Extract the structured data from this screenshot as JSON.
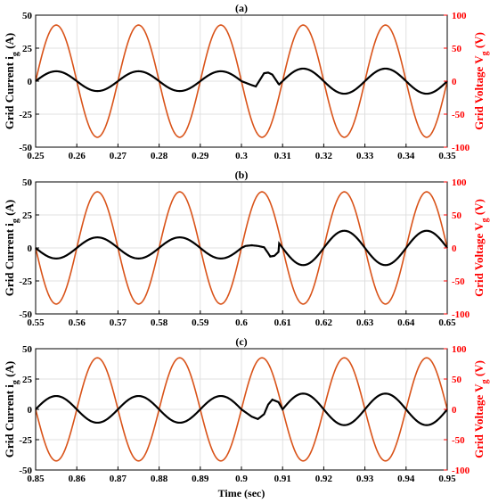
{
  "colors": {
    "current": "#000000",
    "voltage": "#d95319",
    "right_axis": "#ff0000",
    "grid": "#d9d9d9"
  },
  "chart_data": [
    {
      "type": "line",
      "title": "(a)",
      "xlabel": "",
      "xlim": [
        0.25,
        0.35
      ],
      "xticks": [
        "0.25",
        "0.26",
        "0.27",
        "0.28",
        "0.29",
        "0.3",
        "0.31",
        "0.32",
        "0.33",
        "0.34",
        "0.35"
      ],
      "ylabel_left": {
        "main": "Grid Current i",
        "sub": "g",
        "unit": "(A)"
      },
      "ylim_left": [
        -50,
        50
      ],
      "yticks_left": [
        "50",
        "25",
        "0",
        "-25",
        "-50"
      ],
      "ylabel_right": {
        "main": "Grid Voltage V",
        "sub": "g",
        "unit": "(V)"
      },
      "ylim_right": [
        -100,
        100
      ],
      "yticks_right": [
        "100",
        "50",
        "0",
        "-50",
        "-100"
      ],
      "grid": true,
      "series": [
        {
          "axis": "right",
          "color": "#d95319",
          "frequency_hz": 50,
          "amplitude": 85,
          "phase_origin": 0.25,
          "phase_deg": 0
        },
        {
          "axis": "left",
          "color": "#000000",
          "frequency_hz": 50,
          "phase_origin": 0.25,
          "phase_deg": 0,
          "amplitude_before": 7.5,
          "amplitude_after": 9.5,
          "event_time": 0.3,
          "transient": [
            [
              0.3,
              0
            ],
            [
              0.3025,
              -3
            ],
            [
              0.3035,
              -4
            ],
            [
              0.3045,
              1
            ],
            [
              0.3055,
              6
            ],
            [
              0.3065,
              6.5
            ],
            [
              0.3075,
              5
            ],
            [
              0.309,
              -2
            ]
          ]
        }
      ]
    },
    {
      "type": "line",
      "title": "(b)",
      "xlabel": "",
      "xlim": [
        0.55,
        0.65
      ],
      "xticks": [
        "0.55",
        "0.56",
        "0.57",
        "0.58",
        "0.59",
        "0.6",
        "0.61",
        "0.62",
        "0.63",
        "0.64",
        "0.65"
      ],
      "ylabel_left": {
        "main": "Grid Current i",
        "sub": "g",
        "unit": "(A)"
      },
      "ylim_left": [
        -50,
        50
      ],
      "yticks_left": [
        "50",
        "25",
        "0",
        "-25",
        "-50"
      ],
      "ylabel_right": {
        "main": "Grid Voltage V",
        "sub": "g",
        "unit": "(V)"
      },
      "ylim_right": [
        -100,
        100
      ],
      "yticks_right": [
        "100",
        "50",
        "0",
        "-50",
        "-100"
      ],
      "grid": true,
      "series": [
        {
          "axis": "right",
          "color": "#d95319",
          "frequency_hz": 50,
          "amplitude": 85,
          "phase_origin": 0.55,
          "phase_deg": 180
        },
        {
          "axis": "left",
          "color": "#000000",
          "frequency_hz": 50,
          "phase_origin": 0.55,
          "phase_deg": 180,
          "amplitude_before": 8,
          "amplitude_after": 13,
          "event_time": 0.6,
          "transient": [
            [
              0.6,
              0
            ],
            [
              0.601,
              1.5
            ],
            [
              0.6025,
              2
            ],
            [
              0.604,
              1.5
            ],
            [
              0.6055,
              0.5
            ],
            [
              0.6065,
              -4
            ],
            [
              0.607,
              -6.5
            ],
            [
              0.608,
              -6
            ],
            [
              0.609,
              -3
            ]
          ]
        }
      ]
    },
    {
      "type": "line",
      "title": "(c)",
      "xlabel": "Time (sec)",
      "xlim": [
        0.85,
        0.95
      ],
      "xticks": [
        "0.85",
        "0.86",
        "0.87",
        "0.88",
        "0.89",
        "0.9",
        "0.91",
        "0.92",
        "0.93",
        "0.94",
        "0.95"
      ],
      "ylabel_left": {
        "main": "Grid Current i",
        "sub": "g",
        "unit": "(A)"
      },
      "ylim_left": [
        -50,
        50
      ],
      "yticks_left": [
        "50",
        "25",
        "0",
        "-25",
        "-50"
      ],
      "ylabel_right": {
        "main": "Grid Voltage V",
        "sub": "g",
        "unit": "(V)"
      },
      "ylim_right": [
        -100,
        100
      ],
      "yticks_right": [
        "100",
        "50",
        "0",
        "-50",
        "-100"
      ],
      "grid": true,
      "series": [
        {
          "axis": "right",
          "color": "#d95319",
          "frequency_hz": 50,
          "amplitude": 85,
          "phase_origin": 0.85,
          "phase_deg": 180
        },
        {
          "axis": "left",
          "color": "#000000",
          "frequency_hz": 50,
          "phase_origin": 0.85,
          "phase_deg": 0,
          "amplitude_before": 11,
          "amplitude_after": 13,
          "event_time": 0.9,
          "transient": [
            [
              0.9,
              0
            ],
            [
              0.9025,
              -6
            ],
            [
              0.904,
              -8
            ],
            [
              0.9055,
              -4
            ],
            [
              0.9065,
              4
            ],
            [
              0.9075,
              8
            ],
            [
              0.909,
              6
            ],
            [
              0.91,
              0
            ]
          ]
        }
      ]
    }
  ]
}
